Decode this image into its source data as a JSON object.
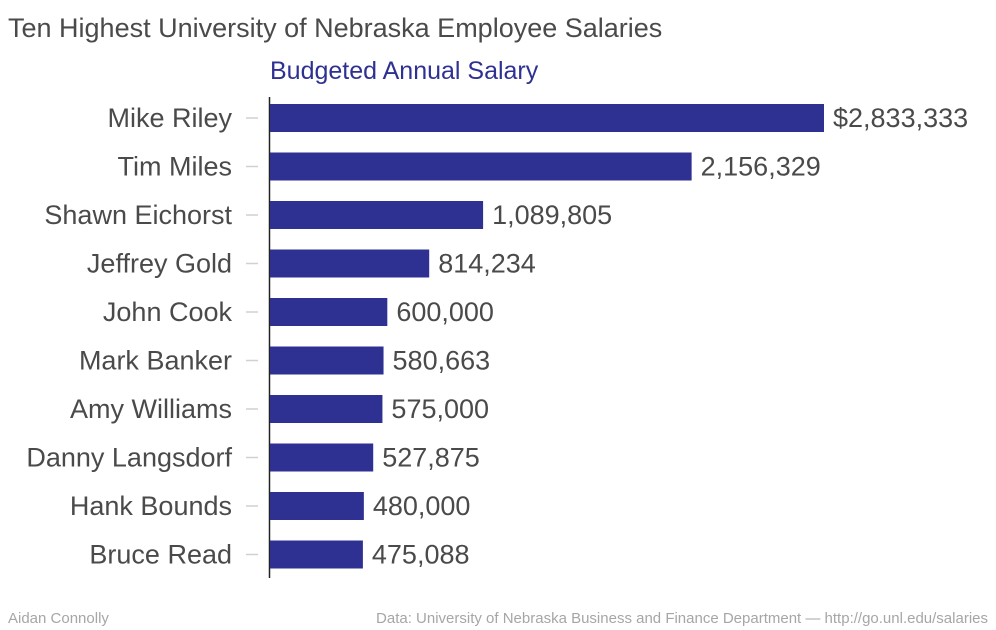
{
  "chart_data": {
    "type": "bar",
    "orientation": "horizontal",
    "title": "Ten Highest University of Nebraska Employee Salaries",
    "subtitle": "Budgeted Annual Salary",
    "categories": [
      "Mike Riley",
      "Tim Miles",
      "Shawn Eichorst",
      "Jeffrey Gold",
      "John Cook",
      "Mark Banker",
      "Amy Williams",
      "Danny Langsdorf",
      "Hank Bounds",
      "Bruce Read"
    ],
    "values": [
      2833333,
      2156329,
      1089805,
      814234,
      600000,
      580663,
      575000,
      527875,
      480000,
      475088
    ],
    "value_labels": [
      "$2,833,333",
      "2,156,329",
      "1,089,805",
      "814,234",
      "600,000",
      "580,663",
      "575,000",
      "527,875",
      "480,000",
      "475,088"
    ],
    "xlim": [
      0,
      2833333
    ],
    "grid": false,
    "legend": "none",
    "bar_color": "#2e3192"
  },
  "footer": {
    "credit": "Aidan Connolly",
    "source": "Data: University of Nebraska Business and Finance Department — http://go.unl.edu/salaries"
  }
}
